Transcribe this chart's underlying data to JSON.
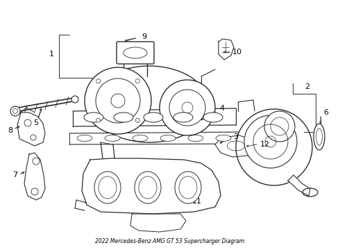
{
  "title": "2022 Mercedes-Benz AMG GT 53 Supercharger Diagram",
  "bg_color": "#ffffff",
  "line_color": "#2a2a2a",
  "text_color": "#000000",
  "fig_width": 4.9,
  "fig_height": 3.6,
  "dpi": 100
}
